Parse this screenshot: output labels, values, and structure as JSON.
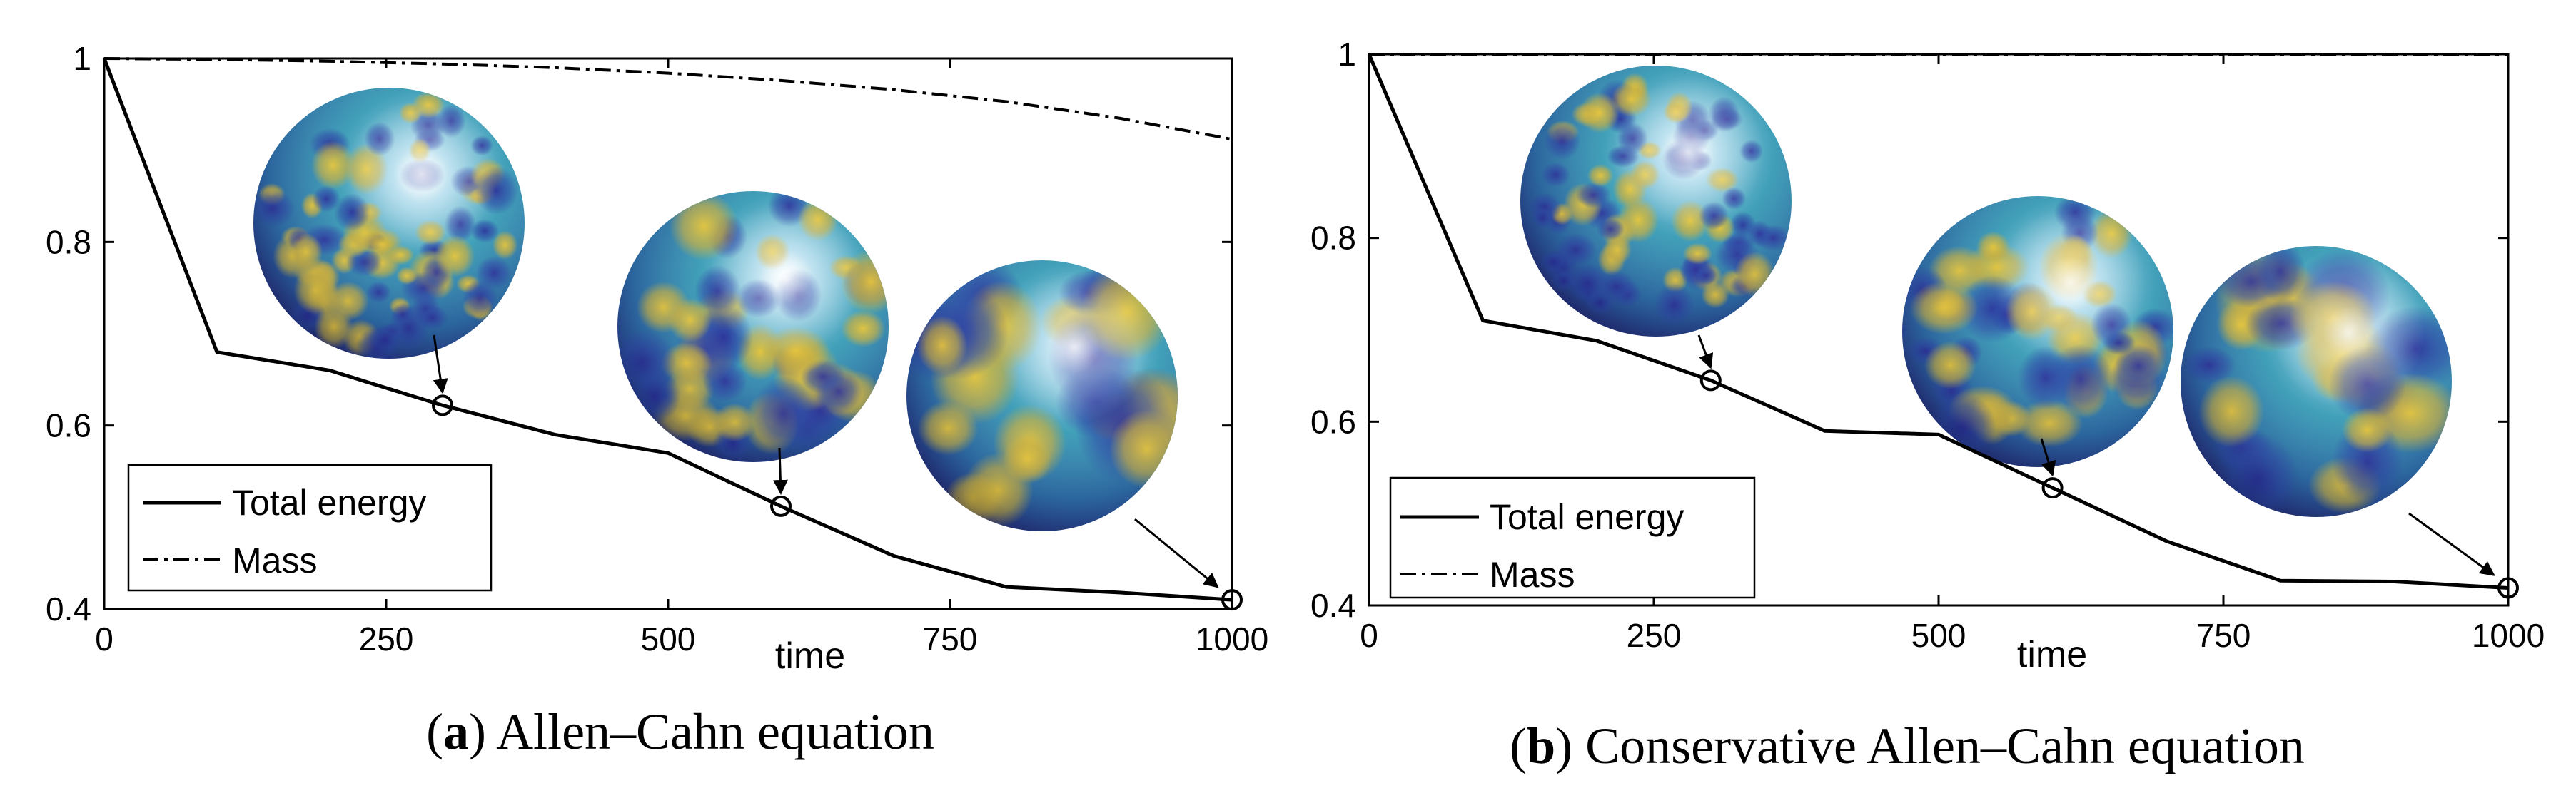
{
  "chart_data": [
    {
      "type": "line",
      "panel_label": "a",
      "title": "Allen–Cahn equation",
      "xlabel": "time",
      "ylabel": "",
      "xlim": [
        0,
        1000
      ],
      "ylim": [
        0.4,
        1.0
      ],
      "xticks": [
        0,
        250,
        500,
        750,
        1000
      ],
      "xtick_labels": [
        "0",
        "250",
        "500",
        "750",
        "1000"
      ],
      "yticks": [
        0.4,
        0.6,
        0.8,
        1.0
      ],
      "ytick_labels": [
        "0.4",
        "0.6",
        "0.8",
        "1"
      ],
      "legend_position": "bottom-left",
      "series": [
        {
          "name": "Total energy",
          "style": "solid",
          "x": [
            0,
            100,
            200,
            300,
            400,
            500,
            600,
            700,
            800,
            900,
            1000
          ],
          "y": [
            1.0,
            0.68,
            0.66,
            0.622,
            0.59,
            0.57,
            0.512,
            0.458,
            0.424,
            0.418,
            0.41
          ]
        },
        {
          "name": "Mass",
          "style": "dashdot",
          "x": [
            0,
            100,
            200,
            300,
            400,
            500,
            600,
            700,
            800,
            900,
            1000
          ],
          "y": [
            1.0,
            0.999,
            0.997,
            0.994,
            0.99,
            0.984,
            0.976,
            0.966,
            0.953,
            0.935,
            0.912
          ]
        }
      ],
      "markers": [
        {
          "x": 300,
          "y": 0.622
        },
        {
          "x": 600,
          "y": 0.512
        },
        {
          "x": 1000,
          "y": 0.41
        }
      ],
      "annotations": [
        {
          "type": "sphere_snapshot",
          "time": 300,
          "pattern": "fine"
        },
        {
          "type": "sphere_snapshot",
          "time": 600,
          "pattern": "medium"
        },
        {
          "type": "sphere_snapshot",
          "time": 1000,
          "pattern": "coarse"
        }
      ]
    },
    {
      "type": "line",
      "panel_label": "b",
      "title": "Conservative Allen–Cahn equation",
      "xlabel": "time",
      "ylabel": "",
      "xlim": [
        0,
        1000
      ],
      "ylim": [
        0.4,
        1.0
      ],
      "xticks": [
        0,
        250,
        500,
        750,
        1000
      ],
      "xtick_labels": [
        "0",
        "250",
        "500",
        "750",
        "1000"
      ],
      "yticks": [
        0.4,
        0.6,
        0.8,
        1.0
      ],
      "ytick_labels": [
        "0.4",
        "0.6",
        "0.8",
        "1"
      ],
      "legend_position": "bottom-left",
      "series": [
        {
          "name": "Total energy",
          "style": "solid",
          "x": [
            0,
            100,
            200,
            300,
            400,
            500,
            600,
            700,
            800,
            900,
            1000
          ],
          "y": [
            1.0,
            0.71,
            0.688,
            0.645,
            0.59,
            0.586,
            0.528,
            0.47,
            0.427,
            0.426,
            0.419
          ]
        },
        {
          "name": "Mass",
          "style": "dashdot",
          "x": [
            0,
            1000
          ],
          "y": [
            1.0,
            1.0
          ]
        }
      ],
      "markers": [
        {
          "x": 300,
          "y": 0.645
        },
        {
          "x": 600,
          "y": 0.528
        },
        {
          "x": 1000,
          "y": 0.419
        }
      ],
      "annotations": [
        {
          "type": "sphere_snapshot",
          "time": 300,
          "pattern": "fine"
        },
        {
          "type": "sphere_snapshot",
          "time": 600,
          "pattern": "medium"
        },
        {
          "type": "sphere_snapshot",
          "time": 1000,
          "pattern": "coarse"
        }
      ]
    }
  ]
}
